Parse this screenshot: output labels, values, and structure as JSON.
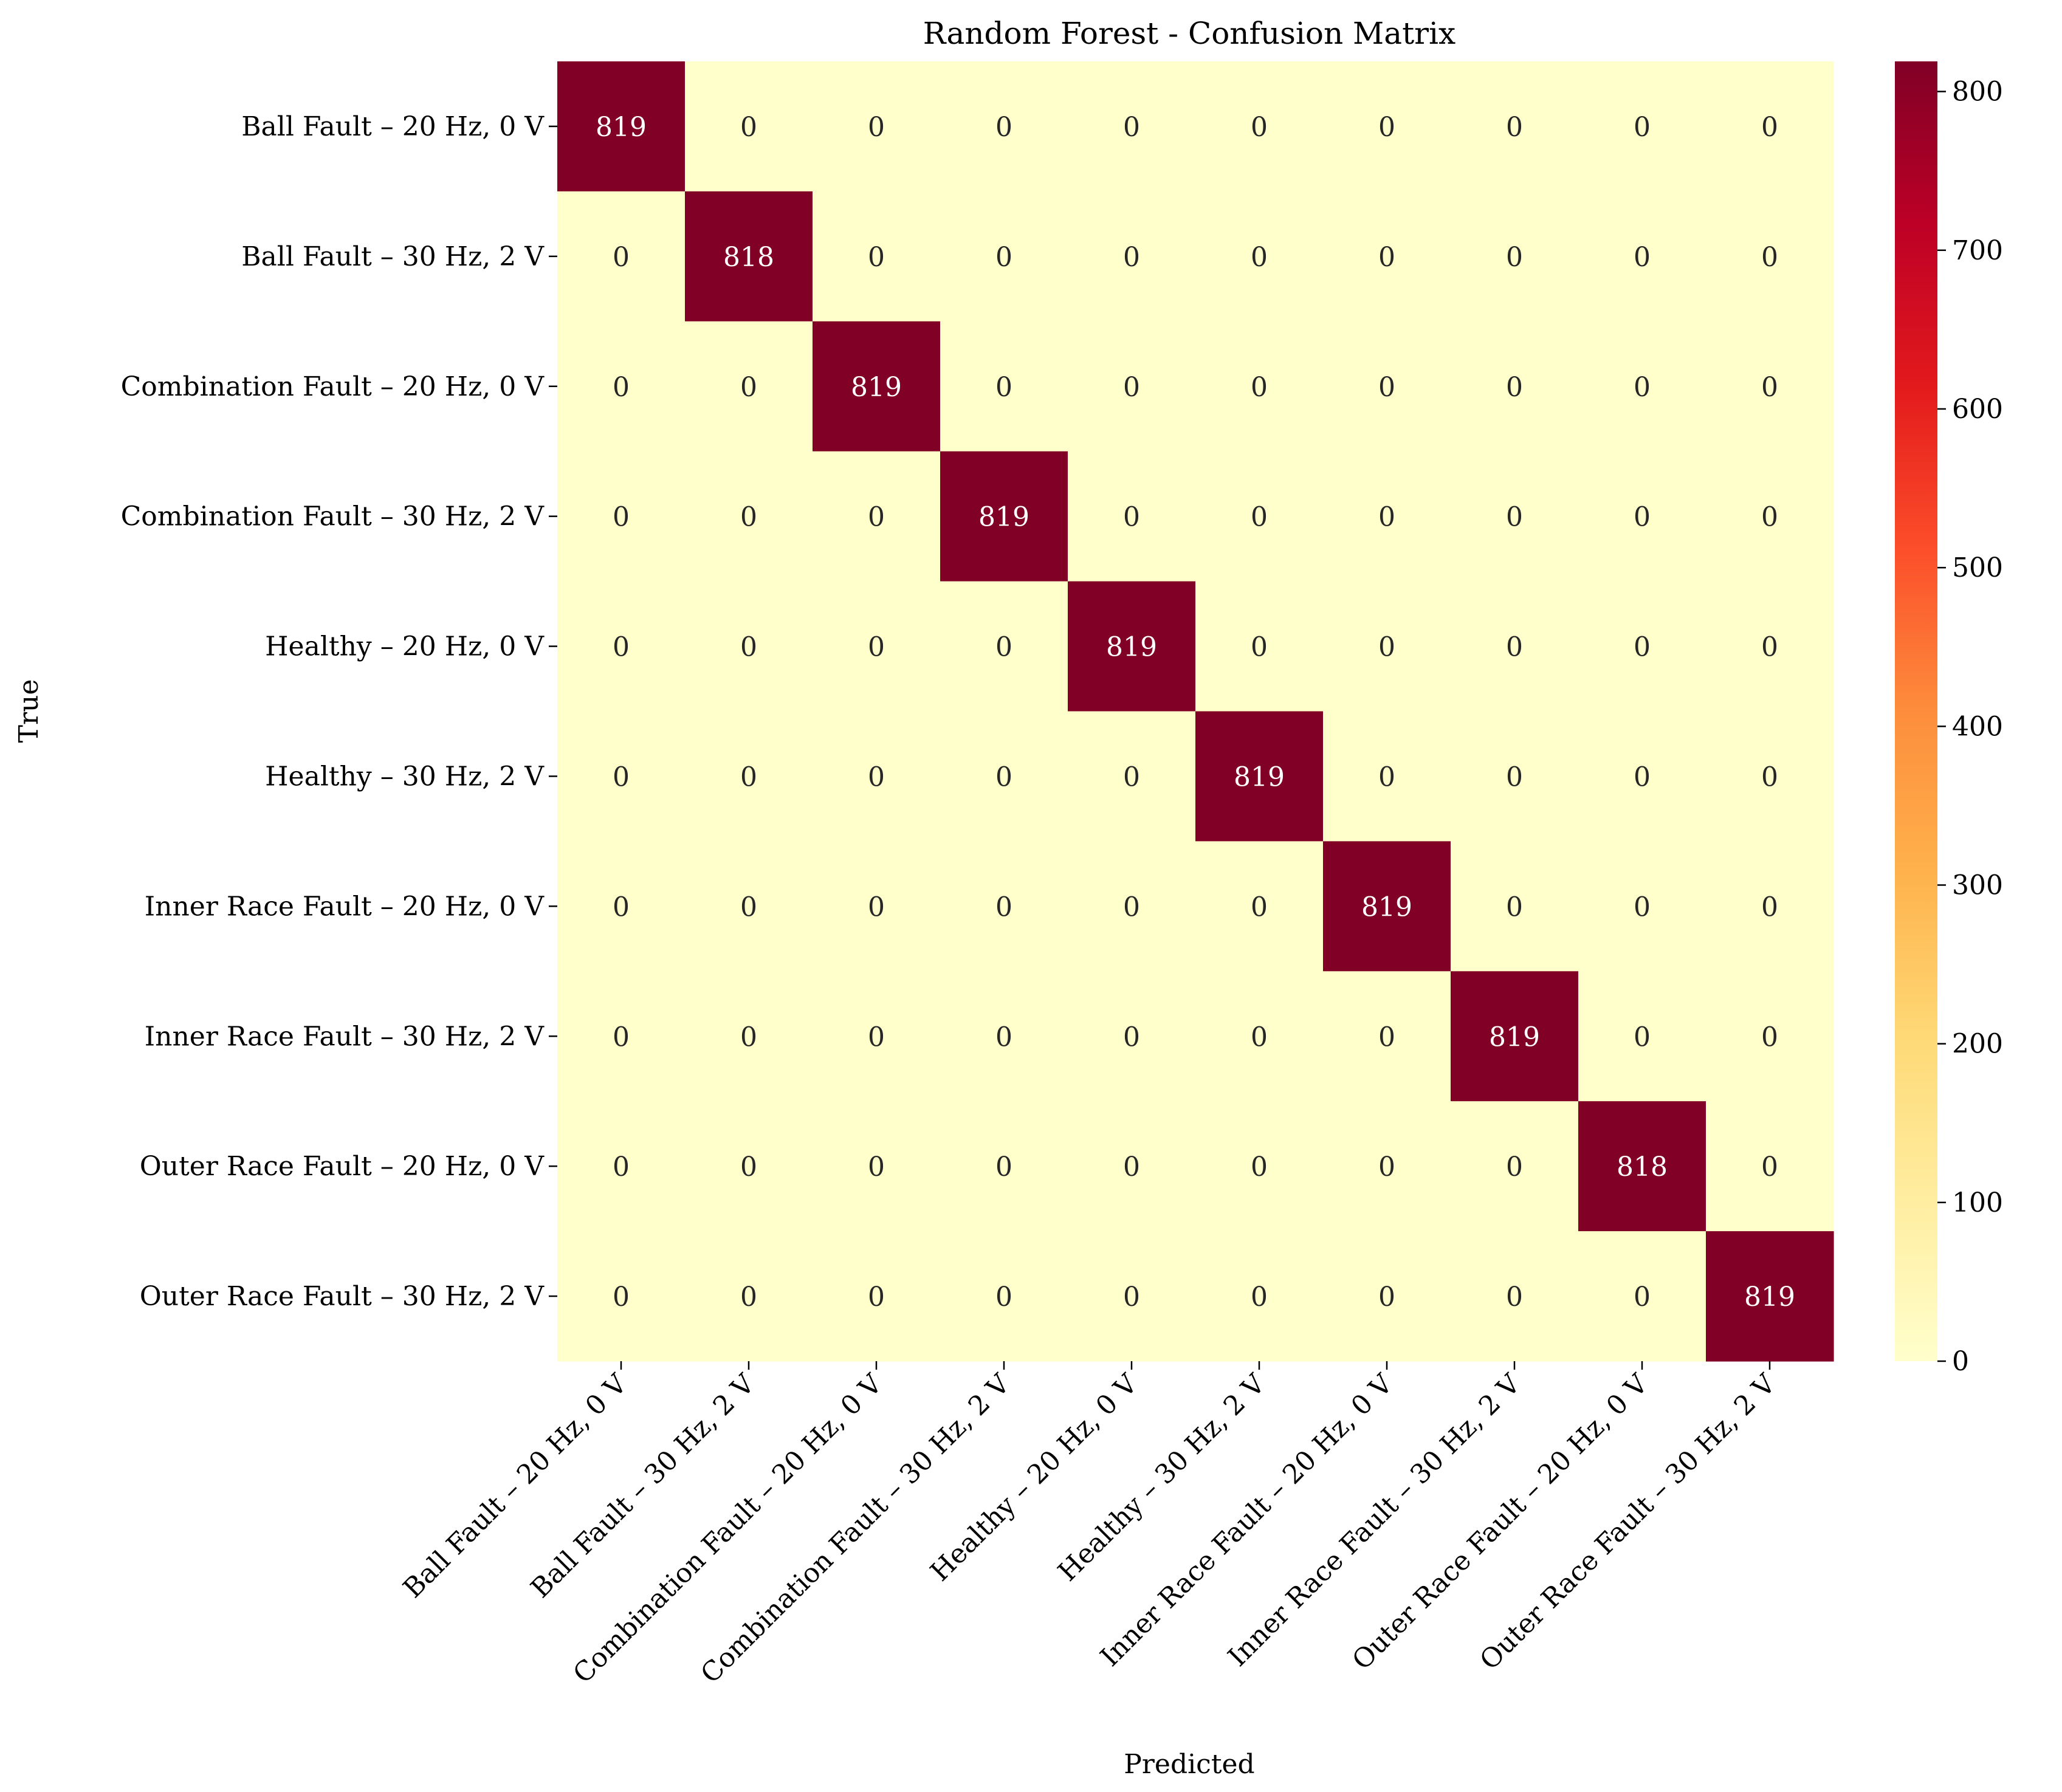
{
  "chart_data": {
    "type": "heatmap",
    "title": "Random Forest - Confusion Matrix",
    "xlabel": "Predicted",
    "ylabel": "True",
    "labels": [
      "Ball Fault – 20 Hz, 0 V",
      "Ball Fault – 30 Hz, 2 V",
      "Combination Fault – 20 Hz, 0 V",
      "Combination Fault – 30 Hz, 2 V",
      "Healthy – 20 Hz, 0 V",
      "Healthy – 30 Hz, 2 V",
      "Inner Race Fault – 20 Hz, 0 V",
      "Inner Race Fault – 30 Hz, 2 V",
      "Outer Race Fault – 20 Hz, 0 V",
      "Outer Race Fault – 30 Hz, 2 V"
    ],
    "matrix": [
      [
        819,
        0,
        0,
        0,
        0,
        0,
        0,
        0,
        0,
        0
      ],
      [
        0,
        818,
        0,
        0,
        0,
        0,
        0,
        0,
        0,
        0
      ],
      [
        0,
        0,
        819,
        0,
        0,
        0,
        0,
        0,
        0,
        0
      ],
      [
        0,
        0,
        0,
        819,
        0,
        0,
        0,
        0,
        0,
        0
      ],
      [
        0,
        0,
        0,
        0,
        819,
        0,
        0,
        0,
        0,
        0
      ],
      [
        0,
        0,
        0,
        0,
        0,
        819,
        0,
        0,
        0,
        0
      ],
      [
        0,
        0,
        0,
        0,
        0,
        0,
        819,
        0,
        0,
        0
      ],
      [
        0,
        0,
        0,
        0,
        0,
        0,
        0,
        819,
        0,
        0
      ],
      [
        0,
        0,
        0,
        0,
        0,
        0,
        0,
        0,
        818,
        0
      ],
      [
        0,
        0,
        0,
        0,
        0,
        0,
        0,
        0,
        0,
        819
      ]
    ],
    "colormap": "YlOrRd",
    "colorbar": {
      "range": [
        0,
        819
      ],
      "ticks": [
        0,
        100,
        200,
        300,
        400,
        500,
        600,
        700,
        800
      ]
    }
  }
}
